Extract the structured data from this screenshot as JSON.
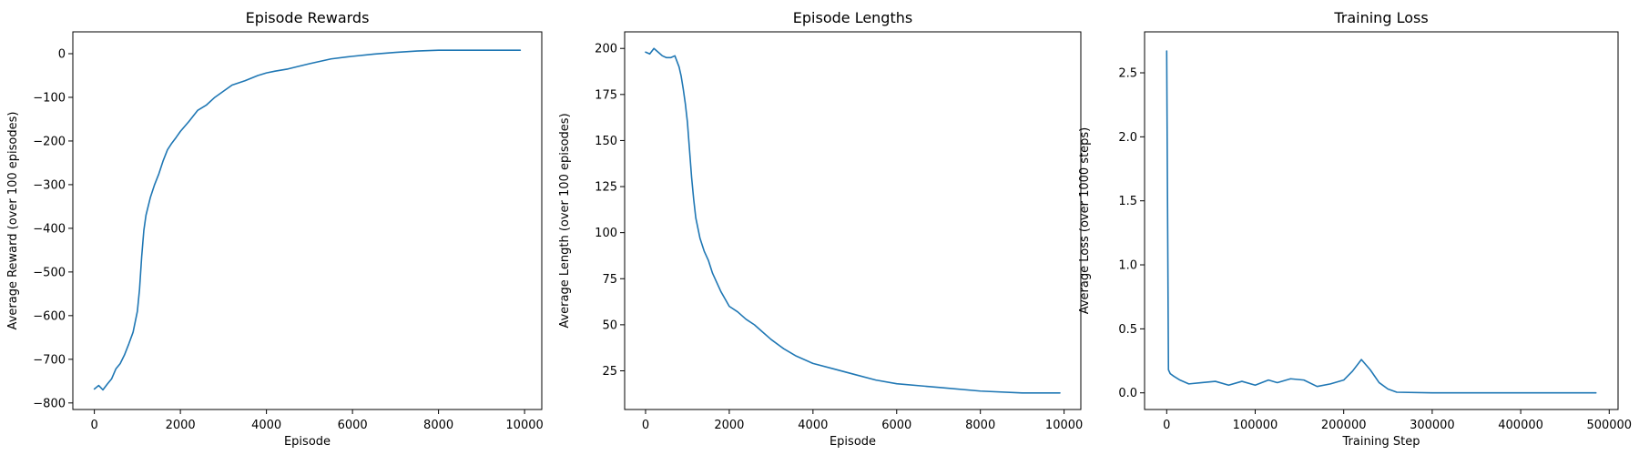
{
  "chart_data": [
    {
      "type": "line",
      "title": "Episode Rewards",
      "xlabel": "Episode",
      "ylabel": "Average Reward (over 100 episodes)",
      "xlim": [
        -500,
        10400
      ],
      "ylim": [
        -815,
        50
      ],
      "xticks": [
        0,
        2000,
        4000,
        6000,
        8000,
        10000
      ],
      "xtick_labels": [
        "0",
        "2000",
        "4000",
        "6000",
        "8000",
        "10000"
      ],
      "yticks": [
        -800,
        -700,
        -600,
        -500,
        -400,
        -300,
        -200,
        -100,
        0
      ],
      "ytick_labels": [
        "−800",
        "−700",
        "−600",
        "−500",
        "−400",
        "−300",
        "−200",
        "−100",
        "0"
      ],
      "grid": false,
      "series": [
        {
          "color": "#1f77b4",
          "x": [
            0,
            100,
            200,
            300,
            400,
            500,
            600,
            700,
            800,
            900,
            1000,
            1050,
            1100,
            1150,
            1200,
            1300,
            1400,
            1500,
            1600,
            1700,
            1800,
            1900,
            2000,
            2200,
            2400,
            2600,
            2800,
            3000,
            3200,
            3500,
            3800,
            4000,
            4200,
            4500,
            5000,
            5500,
            6000,
            6500,
            7000,
            7500,
            8000,
            8500,
            9000,
            9500,
            9900
          ],
          "y": [
            -768,
            -760,
            -770,
            -757,
            -745,
            -722,
            -710,
            -690,
            -665,
            -638,
            -590,
            -540,
            -465,
            -405,
            -370,
            -330,
            -300,
            -275,
            -245,
            -220,
            -205,
            -192,
            -178,
            -155,
            -130,
            -118,
            -100,
            -86,
            -72,
            -62,
            -50,
            -44,
            -40,
            -35,
            -23,
            -12,
            -6,
            -1,
            3,
            6,
            8,
            8,
            8,
            8,
            8
          ]
        }
      ]
    },
    {
      "type": "line",
      "title": "Episode Lengths",
      "xlabel": "Episode",
      "ylabel": "Average Length (over 100 episodes)",
      "xlim": [
        -500,
        10400
      ],
      "ylim": [
        4,
        209
      ],
      "xticks": [
        0,
        2000,
        4000,
        6000,
        8000,
        10000
      ],
      "xtick_labels": [
        "0",
        "2000",
        "4000",
        "6000",
        "8000",
        "10000"
      ],
      "yticks": [
        25,
        50,
        75,
        100,
        125,
        150,
        175,
        200
      ],
      "ytick_labels": [
        "25",
        "50",
        "75",
        "100",
        "125",
        "150",
        "175",
        "200"
      ],
      "grid": false,
      "series": [
        {
          "color": "#1f77b4",
          "x": [
            0,
            100,
            200,
            300,
            400,
            500,
            600,
            700,
            800,
            850,
            900,
            950,
            1000,
            1050,
            1100,
            1150,
            1200,
            1300,
            1400,
            1500,
            1600,
            1700,
            1800,
            1900,
            2000,
            2200,
            2400,
            2600,
            2800,
            3000,
            3300,
            3600,
            4000,
            4500,
            5000,
            5500,
            6000,
            7000,
            8000,
            9000,
            9900
          ],
          "y": [
            198,
            197,
            200,
            198,
            196,
            195,
            195,
            196,
            190,
            185,
            178,
            170,
            160,
            145,
            130,
            118,
            108,
            97,
            90,
            85,
            78,
            73,
            68,
            64,
            60,
            57,
            53,
            50,
            46,
            42,
            37,
            33,
            29,
            26,
            23,
            20,
            18,
            16,
            14,
            13,
            13
          ]
        }
      ]
    },
    {
      "type": "line",
      "title": "Training Loss",
      "xlabel": "Training Step",
      "ylabel": "Average Loss (over 1000 steps)",
      "xlim": [
        -25000,
        510000
      ],
      "ylim": [
        -0.13,
        2.82
      ],
      "xticks": [
        0,
        100000,
        200000,
        300000,
        400000,
        500000
      ],
      "xtick_labels": [
        "0",
        "100000",
        "200000",
        "300000",
        "400000",
        "500000"
      ],
      "yticks": [
        0.0,
        0.5,
        1.0,
        1.5,
        2.0,
        2.5
      ],
      "ytick_labels": [
        "0.0",
        "0.5",
        "1.0",
        "1.5",
        "2.0",
        "2.5"
      ],
      "grid": false,
      "series": [
        {
          "color": "#1f77b4",
          "x": [
            0,
            2000,
            4000,
            8000,
            15000,
            25000,
            40000,
            55000,
            70000,
            85000,
            100000,
            115000,
            125000,
            140000,
            155000,
            170000,
            185000,
            200000,
            210000,
            220000,
            230000,
            240000,
            250000,
            260000,
            300000,
            400000,
            485000
          ],
          "y": [
            2.67,
            0.18,
            0.15,
            0.13,
            0.1,
            0.07,
            0.08,
            0.09,
            0.06,
            0.09,
            0.06,
            0.1,
            0.08,
            0.11,
            0.1,
            0.05,
            0.07,
            0.1,
            0.17,
            0.26,
            0.18,
            0.08,
            0.03,
            0.005,
            0.0,
            0.0,
            0.0
          ]
        }
      ]
    }
  ]
}
